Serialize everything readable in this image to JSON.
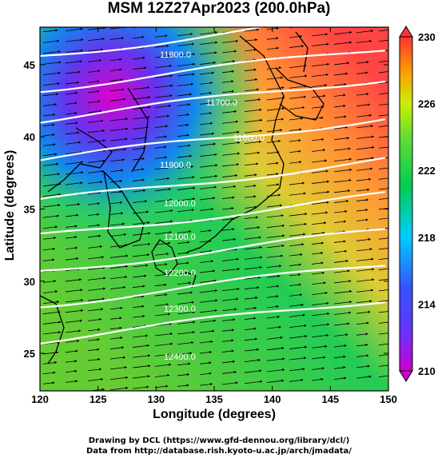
{
  "title": "MSM 12Z27Apr2023 (200.0hPa)",
  "xlabel": "Longitude (degrees)",
  "ylabel": "Latitude  (degrees)",
  "credit_line1": "Drawing by DCL (https://www.gfd-dennou.org/library/dcl/)",
  "credit_line2": "Data from http://database.rish.kyoto-u.ac.jp/arch/jmadata/",
  "map": {
    "lon_range": [
      120,
      150
    ],
    "lat_range": [
      22.4,
      47.6
    ],
    "x_ticks": [
      "120",
      "125",
      "130",
      "135",
      "140",
      "145",
      "150"
    ],
    "y_ticks": [
      "25",
      "30",
      "35",
      "40",
      "45"
    ],
    "contour_labels": [
      "11800.0",
      "11700.0",
      "11800.0",
      "11900.0",
      "12000.0",
      "12100.0",
      "12200.0",
      "12300.0",
      "12400.0"
    ]
  },
  "colorbar": {
    "min": 210,
    "max": 230,
    "tick_labels": [
      "230",
      "226",
      "222",
      "218",
      "214",
      "210"
    ],
    "colors": [
      "#cc00cc",
      "#3333ff",
      "#00ccff",
      "#00cc44",
      "#66dd33",
      "#ccee00",
      "#ff9900",
      "#ff3333"
    ]
  },
  "legend_icons": [
    "wind-arrow-icon",
    "height-contour-icon"
  ]
}
